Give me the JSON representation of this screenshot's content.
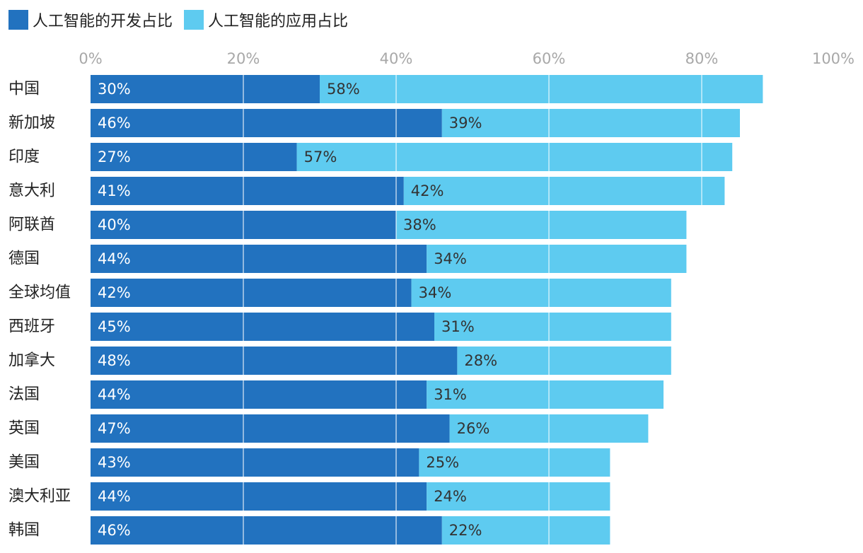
{
  "chart_data": {
    "type": "bar",
    "orientation": "horizontal",
    "stacked": true,
    "categories": [
      "中国",
      "新加坡",
      "印度",
      "意大利",
      "阿联酋",
      "德国",
      "全球均值",
      "西班牙",
      "加拿大",
      "法国",
      "英国",
      "美国",
      "澳大利亚",
      "韩国"
    ],
    "series": [
      {
        "name": "人工智能的开发占比",
        "values": [
          30,
          46,
          27,
          41,
          40,
          44,
          42,
          45,
          48,
          44,
          47,
          43,
          44,
          46
        ],
        "labels": [
          "30%",
          "46%",
          "27%",
          "41%",
          "40%",
          "44%",
          "42%",
          "45%",
          "48%",
          "44%",
          "47%",
          "43%",
          "44%",
          "46%"
        ],
        "color": "#2272bf"
      },
      {
        "name": "人工智能的应用占比",
        "values": [
          58,
          39,
          57,
          42,
          38,
          34,
          34,
          31,
          28,
          31,
          26,
          25,
          24,
          22
        ],
        "labels": [
          "58%",
          "39%",
          "57%",
          "42%",
          "38%",
          "34%",
          "34%",
          "31%",
          "28%",
          "31%",
          "26%",
          "25%",
          "24%",
          "22%"
        ],
        "color": "#5ecbf0"
      }
    ],
    "x_ticks": [
      "0%",
      "20%",
      "40%",
      "60%",
      "80%",
      "100%"
    ],
    "x_tick_values": [
      0,
      20,
      40,
      60,
      80,
      100
    ],
    "xlim": [
      0,
      100
    ],
    "legend_position": "top-left",
    "axis_position": "top",
    "grid": true,
    "gridline_color": "#ffffff",
    "tick_label_color": "#a8a8a8"
  }
}
